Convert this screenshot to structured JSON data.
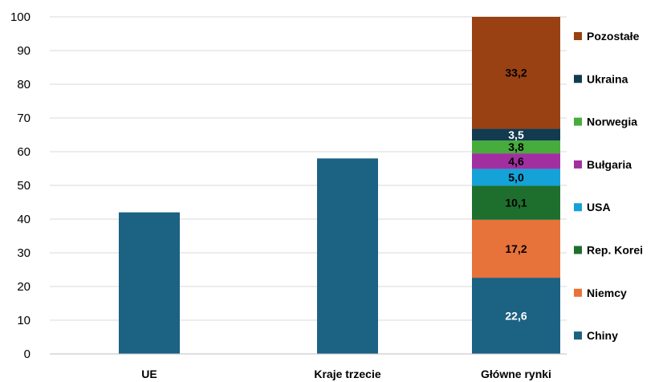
{
  "chart_data": {
    "type": "bar",
    "categories": [
      "UE",
      "Kraje trzecie",
      "Główne rynki"
    ],
    "simple_values": [
      {
        "category": "UE",
        "value": 42
      },
      {
        "category": "Kraje trzecie",
        "value": 58
      }
    ],
    "stacked": {
      "category": "Główne rynki",
      "segments": [
        {
          "name": "Chiny",
          "value": 22.6,
          "label": "22,6",
          "color": "#1b6283",
          "text_color": "#ffffff"
        },
        {
          "name": "Niemcy",
          "value": 17.2,
          "label": "17,2",
          "color": "#e7723a",
          "text_color": "#000000"
        },
        {
          "name": "Rep. Korei",
          "value": 10.1,
          "label": "10,1",
          "color": "#1e6f2e",
          "text_color": "#000000"
        },
        {
          "name": "USA",
          "value": 5.0,
          "label": "5,0",
          "color": "#14a2d8",
          "text_color": "#000000"
        },
        {
          "name": "Bułgaria",
          "value": 4.6,
          "label": "4,6",
          "color": "#a12fa0",
          "text_color": "#000000"
        },
        {
          "name": "Norwegia",
          "value": 3.8,
          "label": "3,8",
          "color": "#46ac3c",
          "text_color": "#000000"
        },
        {
          "name": "Ukraina",
          "value": 3.5,
          "label": "3,5",
          "color": "#123b4f",
          "text_color": "#ffffff"
        },
        {
          "name": "Pozostałe",
          "value": 33.2,
          "label": "33,2",
          "color": "#994112",
          "text_color": "#000000"
        }
      ]
    },
    "legend_order": [
      "Pozostałe",
      "Ukraina",
      "Norwegia",
      "Bułgaria",
      "USA",
      "Rep. Korei",
      "Niemcy",
      "Chiny"
    ],
    "bar_color": "#1b6283",
    "ylim": [
      0,
      100
    ],
    "yticks": [
      0,
      10,
      20,
      30,
      40,
      50,
      60,
      70,
      80,
      90,
      100
    ],
    "grid": true,
    "legend_position": "right",
    "title": "",
    "xlabel": "",
    "ylabel": ""
  }
}
